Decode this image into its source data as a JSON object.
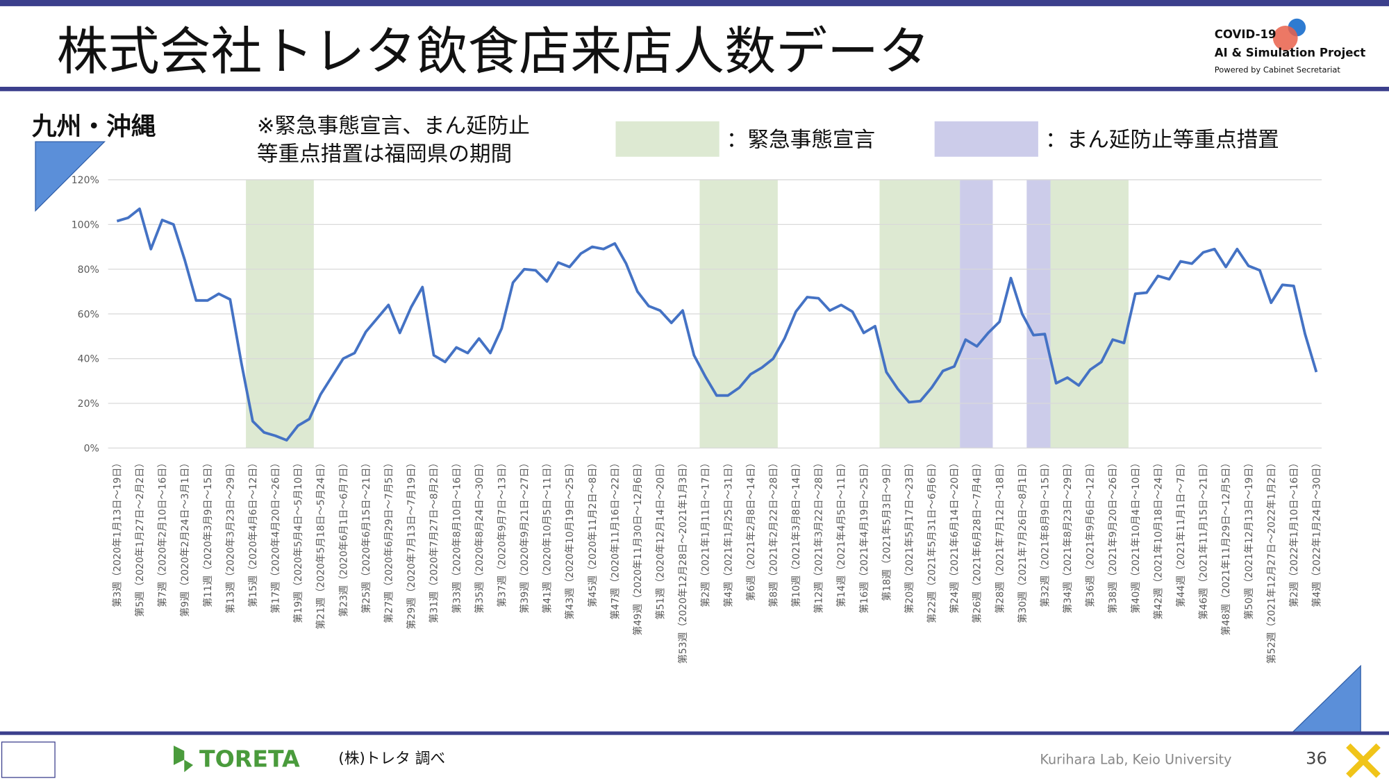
{
  "header": {
    "title": "株式会社トレタ飲食店来店人数データ",
    "logo": [
      "COVID-19",
      "AI & Simulation Project",
      "Powered by Cabinet Secretariat"
    ]
  },
  "footer": {
    "brand": "TORETA",
    "source": "(株)トレタ 調べ",
    "credit": "Kurihara Lab, Keio University",
    "page": "36"
  },
  "chart_data": {
    "type": "line",
    "title": "九州・沖縄",
    "note": [
      "※緊急事態宣言、まん延防止",
      "等重点措置は福岡県の期間"
    ],
    "color": "#4472c4",
    "grid": true,
    "ylim": [
      0,
      120
    ],
    "yticks": [
      {
        "value": 0,
        "label": "0%"
      },
      {
        "value": 20,
        "label": "20%"
      },
      {
        "value": 40,
        "label": "40%"
      },
      {
        "value": 60,
        "label": "60%"
      },
      {
        "value": 80,
        "label": "80%"
      },
      {
        "value": 100,
        "label": "100%"
      },
      {
        "value": 120,
        "label": "120%"
      }
    ],
    "shades": [
      {
        "label": "：緊急事態宣言",
        "color": "#dde9d2",
        "spans": [
          [
            11.4,
            17.4
          ],
          [
            51.5,
            58.4
          ],
          [
            67.4,
            74.5
          ],
          [
            82.5,
            89.4
          ]
        ]
      },
      {
        "label": "：まん延防止等重点措置",
        "color": "#ccccea",
        "spans": [
          [
            74.5,
            77.4
          ],
          [
            80.4,
            82.5
          ]
        ]
      }
    ],
    "categories": [
      "第3週（2020年1月13日～19日）",
      null,
      "第5週（2020年1月27日～2月2日）",
      null,
      "第7週（2020年2月10日～16日）",
      null,
      "第9週（2020年2月24日～3月1日）",
      null,
      "第11週（2020年3月9日～15日）",
      null,
      "第13週（2020年3月23日～29日）",
      null,
      "第15週（2020年4月6日～12日）",
      null,
      "第17週（2020年4月20日～26日）",
      null,
      "第19週（2020年5月4日～5月10日）",
      null,
      "第21週（2020年5月18日～5月24日）",
      null,
      "第23週（2020年6月1日～6月7日）",
      null,
      "第25週（2020年6月15日～21日）",
      null,
      "第27週（2020年6月29日～7月5日）",
      null,
      "第29週（2020年7月13日～7月19日）",
      null,
      "第31週（2020年7月27日～8月2日）",
      null,
      "第33週（2020年8月10日～16日）",
      null,
      "第35週（2020年8月24日～30日）",
      null,
      "第37週（2020年9月7日～13日）",
      null,
      "第39週（2020年9月21日～27日）",
      null,
      "第41週（2020年10月5日～11日）",
      null,
      "第43週（2020年10月19日～25日）",
      null,
      "第45週（2020年11月2日～8日）",
      null,
      "第47週（2020年11月16日～22日）",
      null,
      "第49週（2020年11月30日～12月6日）",
      null,
      "第51週（2020年12月14日～20日）",
      null,
      "第53週（2020年12月28日～2021年1月3日）",
      null,
      "第2週（2021年1月11日～17日）",
      null,
      "第4週（2021年1月25日～31日）",
      null,
      "第6週（2021年2月8日～14日）",
      null,
      "第8週（2021年2月22日～28日）",
      null,
      "第10週（2021年3月8日～14日）",
      null,
      "第12週（2021年3月22日～28日）",
      null,
      "第14週（2021年4月5日～11日）",
      null,
      "第16週（2021年4月19日～25日）",
      null,
      "第18週（2021年5月3日～9日）",
      null,
      "第20週（2021年5月17日～23日）",
      null,
      "第22週（2021年5月31日～6月6日）",
      null,
      "第24週（2021年6月14日～20日）",
      null,
      "第26週（2021年6月28日～7月4日）",
      null,
      "第28週（2021年7月12日～18日）",
      null,
      "第30週（2021年7月26日～8月1日）",
      null,
      "第32週（2021年8月9日～15日）",
      null,
      "第34週（2021年8月23日～29日）",
      null,
      "第36週（2021年9月6日～12日）",
      null,
      "第38週（2021年9月20日～26日）",
      null,
      "第40週（2021年10月4日～10日）",
      null,
      "第42週（2021年10月18日～24日）",
      null,
      "第44週（2021年11月1日～7日）",
      null,
      "第46週（2021年11月15日～21日）",
      null,
      "第48週（2021年11月29日～12月5日）",
      null,
      "第50週（2021年12月13日～19日）",
      null,
      "第52週（2021年12月27日～2022年1月2日）",
      null,
      "第2週（2022年1月10日～16日）",
      null,
      "第4週（2022年1月24日～30日）"
    ],
    "values": [
      101.5,
      103,
      107,
      89,
      102,
      100,
      84,
      66,
      66,
      69,
      66.5,
      38,
      12,
      7,
      5.5,
      3.5,
      10,
      13,
      24,
      32,
      40,
      42.5,
      52,
      58,
      64,
      51.5,
      63,
      72,
      41.5,
      38.5,
      45,
      42.5,
      49,
      42.5,
      53.5,
      74,
      80,
      79.5,
      74.5,
      83,
      81,
      87,
      90,
      89,
      91.5,
      82.5,
      70,
      63.5,
      61.5,
      56,
      61.5,
      41.5,
      32,
      23.5,
      23.5,
      27,
      33,
      36,
      40,
      49,
      61,
      67.5,
      67,
      61.5,
      64,
      61,
      51.5,
      54.5,
      34,
      26.5,
      20.5,
      21,
      27,
      34.5,
      36.5,
      48.5,
      45.5,
      51.5,
      56.5,
      76,
      60,
      50.5,
      51,
      29,
      31.5,
      28,
      35,
      38.5,
      48.5,
      47,
      69,
      69.5,
      77,
      75.5,
      83.5,
      82.5,
      87.5,
      89,
      81,
      89,
      81.5,
      79.5,
      65,
      73,
      72.5,
      51,
      34
    ]
  }
}
